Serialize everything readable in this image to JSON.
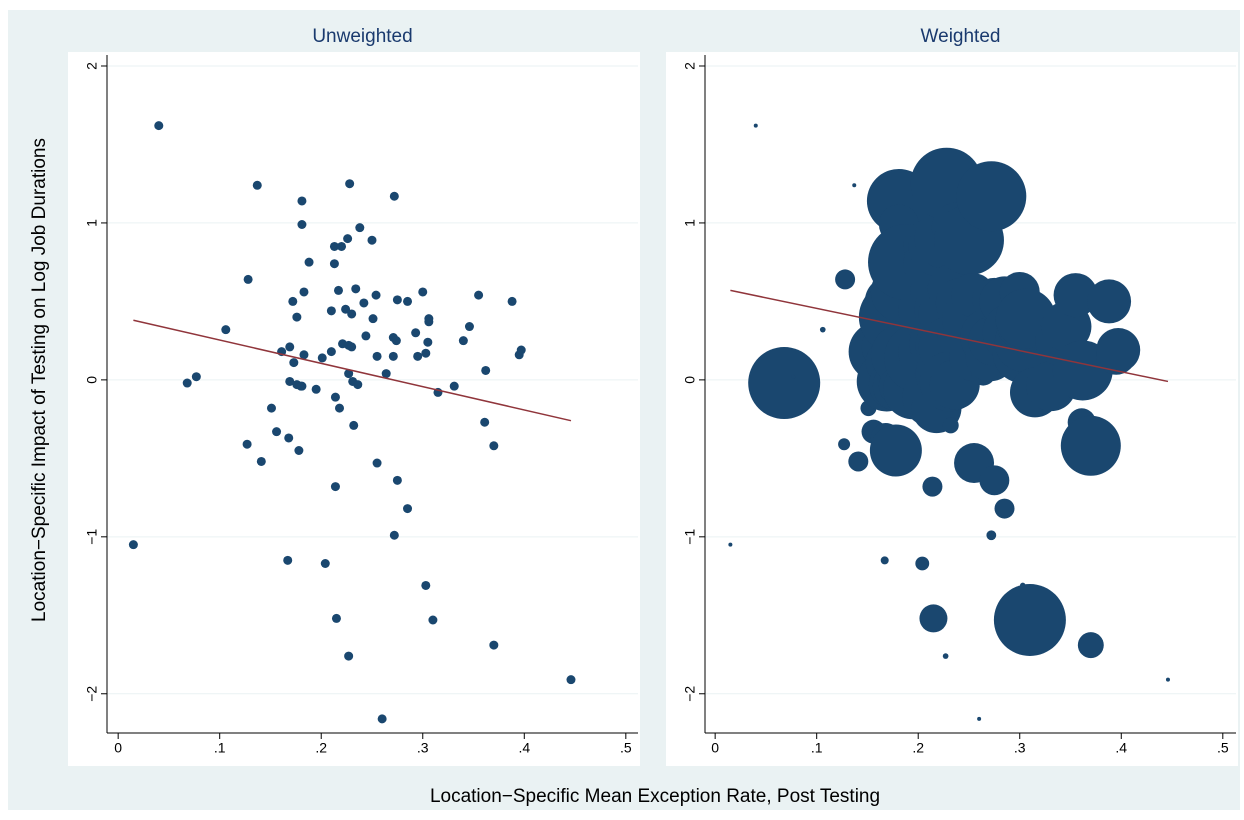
{
  "figure": {
    "xlabel": "Location−Specific Mean Exception Rate, Post Testing",
    "ylabel": "Location−Specific Impact of Testing on Log Job Durations"
  },
  "chart_data": [
    {
      "type": "scatter",
      "title": "Unweighted",
      "color": "#1a476f",
      "fit_color": "#90353b",
      "grid": true,
      "xlim": [
        -0.011,
        0.512
      ],
      "ylim": [
        -2.25,
        2.07
      ],
      "xticks": [
        0,
        {
          "value": 0.1,
          "label": ".1"
        },
        {
          "value": 0.2,
          "label": ".2"
        },
        {
          "value": 0.3,
          "label": ".3"
        },
        {
          "value": 0.4,
          "label": ".4"
        },
        {
          "value": 0.5,
          "label": ".5"
        }
      ],
      "yticks": [
        {
          "value": -2,
          "label": "−2"
        },
        {
          "value": -1,
          "label": "−1"
        },
        0,
        1,
        2
      ],
      "x": [
        0.04,
        0.015,
        0.068,
        0.077,
        0.106,
        0.128,
        0.137,
        0.127,
        0.141,
        0.151,
        0.156,
        0.161,
        0.169,
        0.167,
        0.168,
        0.169,
        0.172,
        0.173,
        0.176,
        0.176,
        0.18,
        0.178,
        0.181,
        0.181,
        0.183,
        0.183,
        0.181,
        0.188,
        0.195,
        0.201,
        0.204,
        0.21,
        0.21,
        0.213,
        0.213,
        0.214,
        0.214,
        0.215,
        0.217,
        0.218,
        0.22,
        0.221,
        0.224,
        0.226,
        0.227,
        0.227,
        0.227,
        0.228,
        0.23,
        0.23,
        0.231,
        0.232,
        0.234,
        0.238,
        0.236,
        0.242,
        0.244,
        0.25,
        0.251,
        0.254,
        0.255,
        0.255,
        0.26,
        0.264,
        0.272,
        0.271,
        0.271,
        0.272,
        0.274,
        0.275,
        0.275,
        0.285,
        0.285,
        0.293,
        0.295,
        0.3,
        0.303,
        0.303,
        0.305,
        0.306,
        0.306,
        0.31,
        0.315,
        0.331,
        0.34,
        0.346,
        0.355,
        0.361,
        0.362,
        0.37,
        0.37,
        0.388,
        0.395,
        0.397,
        0.446
      ],
      "y": [
        1.62,
        -1.05,
        -0.02,
        0.02,
        0.32,
        0.64,
        1.24,
        -0.41,
        -0.52,
        -0.18,
        -0.33,
        0.18,
        0.21,
        -1.15,
        -0.37,
        -0.01,
        0.5,
        0.11,
        0.4,
        -0.03,
        -0.04,
        -0.45,
        1.14,
        0.99,
        0.56,
        0.16,
        -0.04,
        0.75,
        -0.06,
        0.14,
        -1.17,
        0.18,
        0.44,
        0.85,
        0.74,
        -0.11,
        -0.68,
        -1.52,
        0.57,
        -0.18,
        0.85,
        0.23,
        0.45,
        0.9,
        0.22,
        0.04,
        -1.76,
        1.25,
        0.42,
        0.21,
        -0.01,
        -0.29,
        0.58,
        0.97,
        -0.03,
        0.49,
        0.28,
        0.89,
        0.39,
        0.54,
        0.15,
        -0.53,
        -2.16,
        0.04,
        1.17,
        0.27,
        0.15,
        -0.99,
        0.25,
        0.51,
        -0.64,
        0.5,
        -0.82,
        0.3,
        0.15,
        0.56,
        -1.31,
        0.17,
        0.24,
        0.37,
        0.39,
        -1.53,
        -0.08,
        -0.04,
        0.25,
        0.34,
        0.54,
        -0.27,
        0.06,
        -0.42,
        -1.69,
        0.5,
        0.16,
        0.19,
        -1.91
      ],
      "fit": {
        "x": [
          0.015,
          0.446
        ],
        "y": [
          0.38,
          -0.26
        ]
      }
    },
    {
      "type": "bubble",
      "title": "Weighted",
      "color": "#1a476f",
      "fit_color": "#90353b",
      "grid": true,
      "xlim": [
        -0.01,
        0.513
      ],
      "ylim": [
        -2.25,
        2.07
      ],
      "xticks": [
        0,
        {
          "value": 0.1,
          "label": ".1"
        },
        {
          "value": 0.2,
          "label": ".2"
        },
        {
          "value": 0.3,
          "label": ".3"
        },
        {
          "value": 0.4,
          "label": ".4"
        },
        {
          "value": 0.5,
          "label": ".5"
        }
      ],
      "yticks": [
        {
          "value": -2,
          "label": "−2"
        },
        {
          "value": -1,
          "label": "−1"
        },
        0,
        1,
        2
      ],
      "x": [
        0.04,
        0.015,
        0.068,
        0.077,
        0.106,
        0.128,
        0.137,
        0.127,
        0.141,
        0.151,
        0.156,
        0.161,
        0.169,
        0.167,
        0.168,
        0.169,
        0.172,
        0.173,
        0.176,
        0.176,
        0.18,
        0.178,
        0.181,
        0.181,
        0.183,
        0.183,
        0.181,
        0.188,
        0.195,
        0.201,
        0.204,
        0.21,
        0.21,
        0.213,
        0.213,
        0.214,
        0.214,
        0.215,
        0.217,
        0.218,
        0.22,
        0.221,
        0.224,
        0.226,
        0.227,
        0.227,
        0.227,
        0.228,
        0.23,
        0.23,
        0.231,
        0.232,
        0.234,
        0.238,
        0.236,
        0.242,
        0.244,
        0.25,
        0.251,
        0.254,
        0.255,
        0.255,
        0.26,
        0.264,
        0.272,
        0.271,
        0.271,
        0.272,
        0.274,
        0.275,
        0.275,
        0.285,
        0.285,
        0.293,
        0.295,
        0.3,
        0.303,
        0.303,
        0.305,
        0.306,
        0.306,
        0.31,
        0.315,
        0.331,
        0.34,
        0.346,
        0.355,
        0.361,
        0.362,
        0.37,
        0.37,
        0.388,
        0.395,
        0.397,
        0.446
      ],
      "y": [
        1.62,
        -1.05,
        -0.02,
        0.02,
        0.32,
        0.64,
        1.24,
        -0.41,
        -0.52,
        -0.18,
        -0.33,
        0.18,
        0.21,
        -1.15,
        -0.37,
        -0.01,
        0.5,
        0.11,
        0.4,
        -0.03,
        -0.04,
        -0.45,
        1.14,
        0.99,
        0.56,
        0.16,
        -0.04,
        0.75,
        -0.06,
        0.14,
        -1.17,
        0.18,
        0.44,
        0.85,
        0.74,
        -0.11,
        -0.68,
        -1.52,
        0.57,
        -0.18,
        0.85,
        0.23,
        0.45,
        0.9,
        0.22,
        0.04,
        -1.76,
        1.25,
        0.42,
        0.21,
        -0.01,
        -0.29,
        0.58,
        0.97,
        -0.03,
        0.49,
        0.28,
        0.89,
        0.39,
        0.54,
        0.15,
        -0.53,
        -2.16,
        0.04,
        1.17,
        0.27,
        0.15,
        -0.99,
        0.25,
        0.51,
        -0.64,
        0.5,
        -0.82,
        0.3,
        0.15,
        0.56,
        -1.31,
        0.17,
        0.24,
        0.37,
        0.39,
        -1.53,
        -0.08,
        -0.04,
        0.25,
        0.34,
        0.54,
        -0.27,
        0.06,
        -0.42,
        -1.69,
        0.5,
        0.16,
        0.19,
        -1.91
      ],
      "sizes": [
        1,
        1,
        324,
        1,
        2,
        25,
        1,
        9,
        25,
        16,
        36,
        225,
        156,
        4,
        56,
        225,
        156,
        156,
        306,
        156,
        156,
        169,
        256,
        100,
        225,
        225,
        100,
        361,
        225,
        306,
        12,
        225,
        225,
        196,
        196,
        225,
        25,
        49,
        156,
        156,
        225,
        225,
        196,
        225,
        225,
        225,
        2,
        324,
        225,
        225,
        225,
        16,
        156,
        156,
        156,
        156,
        156,
        306,
        196,
        121,
        156,
        100,
        1,
        36,
        306,
        225,
        156,
        6,
        156,
        121,
        56,
        156,
        25,
        225,
        100,
        100,
        2,
        225,
        225,
        225,
        225,
        324,
        156,
        156,
        156,
        156,
        121,
        49,
        225,
        225,
        42,
        121,
        100,
        121,
        1
      ],
      "fit": {
        "x": [
          0.015,
          0.446
        ],
        "y": [
          0.57,
          -0.01
        ]
      }
    }
  ]
}
